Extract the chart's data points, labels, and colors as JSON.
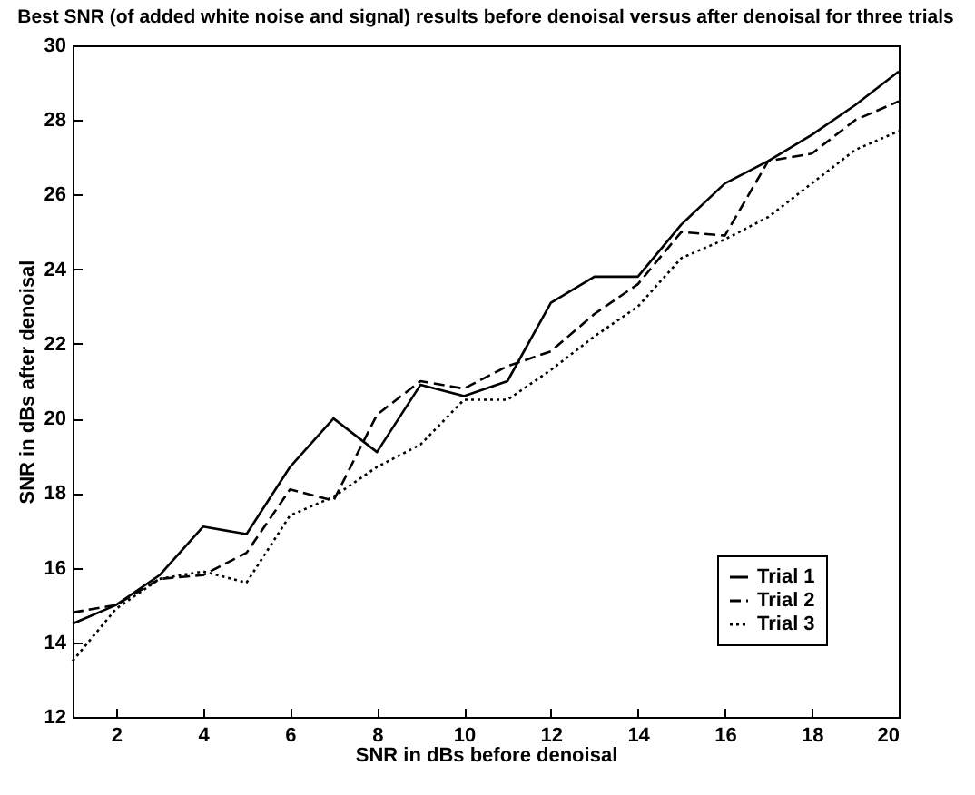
{
  "chart_data": {
    "type": "line",
    "title": "Best SNR (of added white noise and signal) results before denoisal versus after denoisal for three trials",
    "xlabel": "SNR in dBs before denoisal",
    "ylabel": "SNR in dBs after denoisal",
    "x": [
      1,
      2,
      3,
      4,
      5,
      6,
      7,
      8,
      9,
      10,
      11,
      12,
      13,
      14,
      15,
      16,
      17,
      18,
      19,
      20
    ],
    "series": [
      {
        "name": "Trial 1",
        "color": "#000000",
        "line_style": "solid",
        "values": [
          14.5,
          15.0,
          15.8,
          17.1,
          16.9,
          18.7,
          20.0,
          19.1,
          20.9,
          20.6,
          21.0,
          23.1,
          23.8,
          23.8,
          25.2,
          26.3,
          26.9,
          27.6,
          28.4,
          29.3
        ]
      },
      {
        "name": "Trial 2",
        "color": "#000000",
        "line_style": "dashed",
        "values": [
          14.8,
          15.0,
          15.7,
          15.8,
          16.4,
          18.1,
          17.8,
          20.1,
          21.0,
          20.8,
          21.4,
          21.8,
          22.8,
          23.6,
          25.0,
          24.9,
          26.9,
          27.1,
          28.0,
          28.5
        ]
      },
      {
        "name": "Trial 3",
        "color": "#000000",
        "line_style": "dotted",
        "values": [
          13.5,
          14.9,
          15.7,
          15.9,
          15.6,
          17.4,
          17.9,
          18.7,
          19.3,
          20.5,
          20.5,
          21.3,
          22.2,
          23.0,
          24.3,
          24.8,
          25.4,
          26.3,
          27.2,
          27.7
        ]
      }
    ],
    "xlim": [
      1,
      20
    ],
    "xticks": [
      2,
      4,
      6,
      8,
      10,
      12,
      14,
      16,
      18,
      20
    ],
    "ylim": [
      12,
      30
    ],
    "yticks": [
      12,
      14,
      16,
      18,
      20,
      22,
      24,
      26,
      28,
      30
    ],
    "grid": false,
    "legend": "bottom right",
    "marker": "none"
  }
}
